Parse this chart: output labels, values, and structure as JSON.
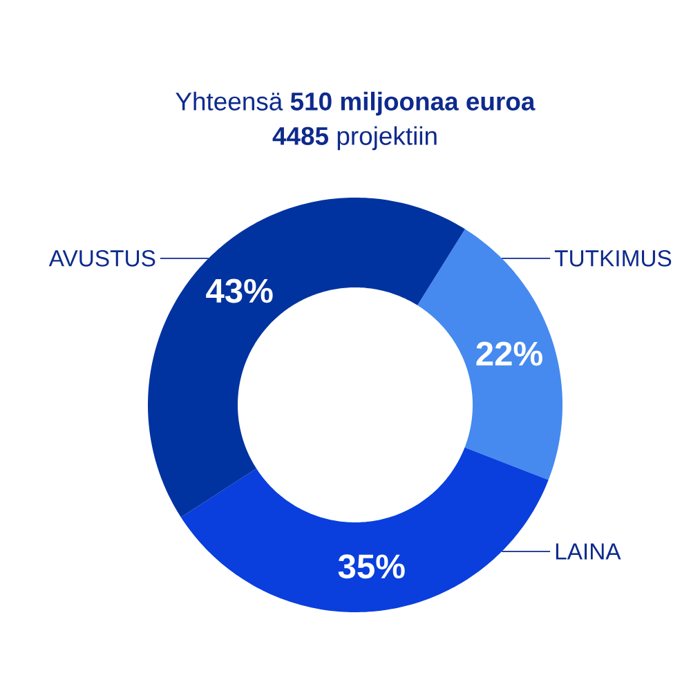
{
  "chart_data": {
    "type": "donut",
    "title": "Yhteensä **510 miljoonaa euroa**",
    "subtitle": "**4485** projektiin",
    "categories": [
      "TUTKIMUS",
      "LAINA",
      "AVUSTUS"
    ],
    "values": [
      22,
      35,
      43
    ],
    "colors": [
      "#468af0",
      "#0a3fdd",
      "#0033a0"
    ],
    "value_labels": [
      "22%",
      "35%",
      "43%"
    ]
  }
}
